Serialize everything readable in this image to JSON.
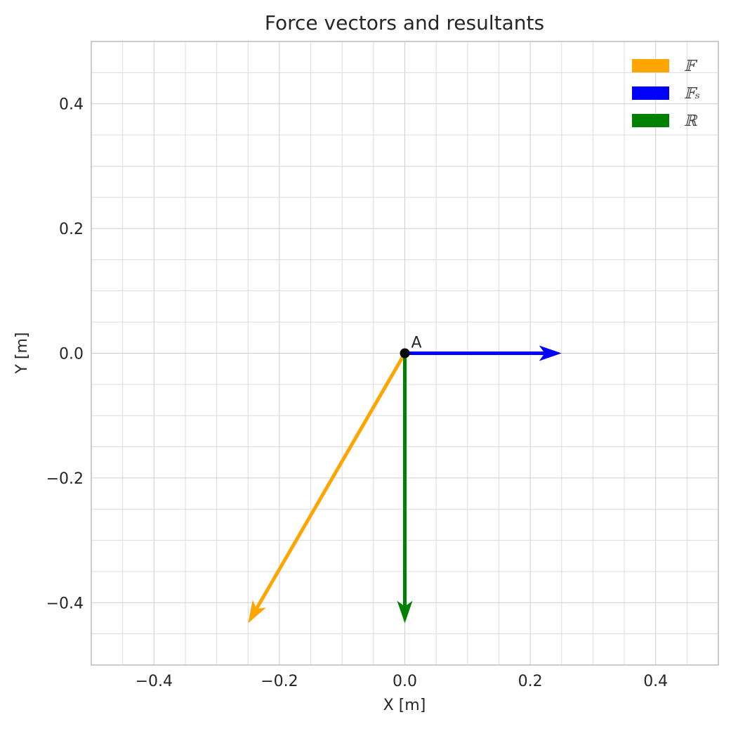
{
  "chart_data": {
    "type": "scatter",
    "title": "Force vectors and resultants",
    "xlabel": "X [m]",
    "ylabel": "Y [m]",
    "xlim": [
      -0.5,
      0.5
    ],
    "ylim": [
      -0.5,
      0.5
    ],
    "xticks": [
      -0.4,
      -0.2,
      0.0,
      0.2,
      0.4
    ],
    "yticks": [
      -0.4,
      -0.2,
      0.0,
      0.2,
      0.4
    ],
    "xtick_labels": [
      "−0.4",
      "−0.2",
      "0.0",
      "0.2",
      "0.4"
    ],
    "ytick_labels": [
      "−0.4",
      "−0.2",
      "0.0",
      "0.2",
      "0.4"
    ],
    "minor_step": 0.05,
    "grid": true,
    "legend_position": "top-right",
    "points": [
      {
        "label": "A",
        "x": 0.0,
        "y": 0.0,
        "color": "#000000"
      }
    ],
    "vectors": [
      {
        "name": "𝔽",
        "x0": 0.0,
        "y0": 0.0,
        "x1": -0.25,
        "y1": -0.433,
        "color": "#FFA500"
      },
      {
        "name": "𝔽ₛ",
        "x0": 0.0,
        "y0": 0.0,
        "x1": 0.25,
        "y1": 0.0,
        "color": "#0000FF"
      },
      {
        "name": "ℝ",
        "x0": 0.0,
        "y0": 0.0,
        "x1": 0.0,
        "y1": -0.433,
        "color": "#008000"
      }
    ]
  }
}
